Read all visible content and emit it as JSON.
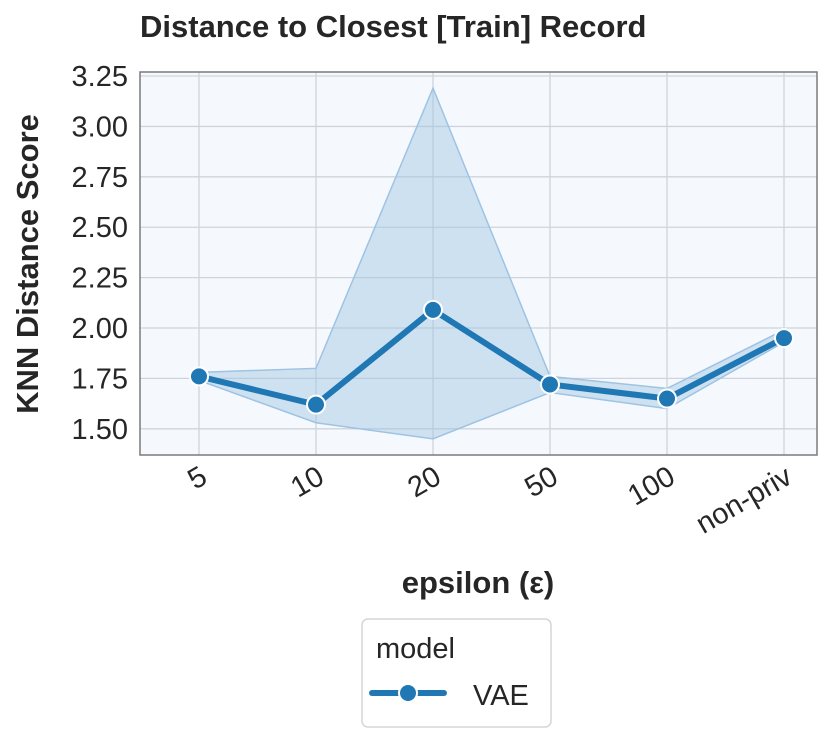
{
  "chart_data": {
    "type": "line",
    "title": "Distance to Closest [Train] Record",
    "xlabel": "epsilon (ε)",
    "ylabel": "KNN Distance Score",
    "categories": [
      "5",
      "10",
      "20",
      "50",
      "100",
      "non-priv"
    ],
    "ylim": [
      1.37,
      3.27
    ],
    "yticks": [
      "1.50",
      "1.75",
      "2.00",
      "2.25",
      "2.50",
      "2.75",
      "3.00",
      "3.25"
    ],
    "grid": true,
    "series": [
      {
        "name": "VAE",
        "values": [
          1.76,
          1.62,
          2.09,
          1.72,
          1.65,
          1.95
        ],
        "ci_lower": [
          1.74,
          1.53,
          1.45,
          1.68,
          1.6,
          1.93
        ],
        "ci_upper": [
          1.78,
          1.8,
          3.19,
          1.76,
          1.7,
          1.99
        ]
      }
    ],
    "legend": {
      "title": "model",
      "placement": "bottom-center"
    },
    "colors": {
      "line": "#1f77b4",
      "band": "#9ec3e3",
      "plot_bg": "#f5f9fe",
      "grid": "#cfd4dc",
      "frame": "#7a7a7a"
    }
  }
}
